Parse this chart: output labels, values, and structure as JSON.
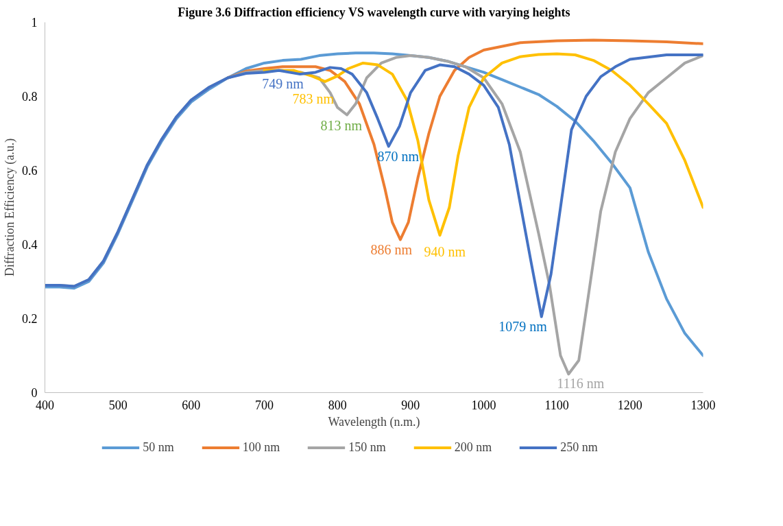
{
  "chart_data": {
    "type": "line",
    "title": "Figure 3.6 Diffraction efficiency VS wavelength curve with varying heights",
    "xlabel": "Wavelength (n.m.)",
    "ylabel": "Diffraction Efficiency (a.u.)",
    "xlim": [
      400,
      1300
    ],
    "ylim": [
      0,
      1
    ],
    "xticks": [
      400,
      500,
      600,
      700,
      800,
      900,
      1000,
      1100,
      1200,
      1300
    ],
    "yticks": [
      0,
      0.2,
      0.4,
      0.6,
      0.8,
      1
    ],
    "grid": false,
    "legend": "bottom",
    "marker": "none",
    "line_style": "solid",
    "series": [
      {
        "name": "50 nm",
        "color": "#5b9bd5",
        "x": [
          400,
          420,
          440,
          460,
          480,
          500,
          520,
          540,
          560,
          580,
          600,
          625,
          650,
          675,
          700,
          725,
          750,
          775,
          800,
          825,
          850,
          875,
          900,
          925,
          950,
          975,
          1000,
          1025,
          1050,
          1075,
          1100,
          1125,
          1150,
          1175,
          1200,
          1225,
          1250,
          1275,
          1300
        ],
        "values": [
          0.285,
          0.285,
          0.282,
          0.3,
          0.35,
          0.43,
          0.52,
          0.61,
          0.68,
          0.74,
          0.785,
          0.82,
          0.85,
          0.875,
          0.89,
          0.897,
          0.9,
          0.91,
          0.915,
          0.917,
          0.917,
          0.915,
          0.91,
          0.905,
          0.895,
          0.88,
          0.865,
          0.845,
          0.825,
          0.805,
          0.773,
          0.733,
          0.68,
          0.62,
          0.553,
          0.38,
          0.253,
          0.16,
          0.1
        ]
      },
      {
        "name": "100 nm",
        "color": "#ed7d31",
        "x": [
          650,
          675,
          700,
          725,
          750,
          770,
          790,
          810,
          830,
          850,
          865,
          875,
          886,
          897,
          910,
          925,
          940,
          960,
          980,
          1000,
          1050,
          1100,
          1150,
          1200,
          1250,
          1300
        ],
        "values": [
          0.85,
          0.868,
          0.875,
          0.88,
          0.88,
          0.88,
          0.87,
          0.84,
          0.78,
          0.67,
          0.55,
          0.46,
          0.413,
          0.46,
          0.58,
          0.7,
          0.8,
          0.87,
          0.905,
          0.925,
          0.945,
          0.95,
          0.952,
          0.95,
          0.947,
          0.942
        ]
      },
      {
        "name": "150 nm",
        "color": "#a5a5a5",
        "x": [
          400,
          420,
          440,
          460,
          480,
          500,
          520,
          540,
          560,
          580,
          600,
          625,
          650,
          675,
          700,
          725,
          750,
          775,
          790,
          800,
          813,
          825,
          840,
          860,
          880,
          900,
          925,
          950,
          975,
          1000,
          1025,
          1050,
          1075,
          1090,
          1105,
          1116,
          1130,
          1140,
          1160,
          1180,
          1200,
          1225,
          1250,
          1275,
          1300
        ],
        "values": [
          0.29,
          0.29,
          0.287,
          0.305,
          0.355,
          0.435,
          0.525,
          0.615,
          0.685,
          0.745,
          0.79,
          0.825,
          0.85,
          0.865,
          0.87,
          0.87,
          0.865,
          0.85,
          0.81,
          0.77,
          0.75,
          0.78,
          0.85,
          0.89,
          0.905,
          0.91,
          0.905,
          0.895,
          0.88,
          0.85,
          0.78,
          0.65,
          0.43,
          0.29,
          0.1,
          0.05,
          0.087,
          0.22,
          0.49,
          0.65,
          0.74,
          0.81,
          0.85,
          0.89,
          0.91
        ]
      },
      {
        "name": "200 nm",
        "color": "#ffc000",
        "x": [
          700,
          740,
          765,
          783,
          800,
          815,
          835,
          855,
          875,
          895,
          910,
          925,
          940,
          953,
          965,
          980,
          1000,
          1025,
          1050,
          1075,
          1100,
          1125,
          1150,
          1175,
          1200,
          1225,
          1250,
          1275,
          1300
        ],
        "values": [
          0.87,
          0.87,
          0.855,
          0.84,
          0.855,
          0.875,
          0.89,
          0.885,
          0.86,
          0.79,
          0.68,
          0.52,
          0.425,
          0.5,
          0.64,
          0.77,
          0.85,
          0.89,
          0.907,
          0.913,
          0.915,
          0.912,
          0.897,
          0.87,
          0.83,
          0.78,
          0.727,
          0.627,
          0.5
        ]
      },
      {
        "name": "250 nm",
        "color": "#4472c4",
        "x": [
          400,
          420,
          440,
          460,
          480,
          500,
          520,
          540,
          560,
          580,
          600,
          625,
          650,
          675,
          700,
          720,
          749,
          770,
          790,
          805,
          820,
          840,
          855,
          870,
          885,
          900,
          920,
          940,
          960,
          980,
          1000,
          1020,
          1035,
          1050,
          1065,
          1079,
          1092,
          1105,
          1120,
          1140,
          1160,
          1180,
          1200,
          1250,
          1300
        ],
        "values": [
          0.29,
          0.29,
          0.287,
          0.305,
          0.355,
          0.435,
          0.525,
          0.615,
          0.685,
          0.745,
          0.79,
          0.825,
          0.85,
          0.862,
          0.865,
          0.87,
          0.86,
          0.865,
          0.878,
          0.875,
          0.86,
          0.81,
          0.74,
          0.665,
          0.72,
          0.81,
          0.87,
          0.885,
          0.88,
          0.86,
          0.83,
          0.77,
          0.67,
          0.51,
          0.35,
          0.205,
          0.32,
          0.5,
          0.71,
          0.8,
          0.853,
          0.88,
          0.9,
          0.912,
          0.912
        ]
      }
    ],
    "annotations": [
      {
        "text": "749 nm",
        "x": 749,
        "y": 0.86
      },
      {
        "text": "783 nm",
        "x": 783,
        "y": 0.84
      },
      {
        "text": "813 nm",
        "x": 813,
        "y": 0.75
      },
      {
        "text": "870 nm",
        "x": 870,
        "y": 0.665
      },
      {
        "text": "886 nm",
        "x": 886,
        "y": 0.413
      },
      {
        "text": "940 nm",
        "x": 940,
        "y": 0.425
      },
      {
        "text": "1079 nm",
        "x": 1079,
        "y": 0.205
      },
      {
        "text": "1116 nm",
        "x": 1116,
        "y": 0.05
      }
    ]
  }
}
